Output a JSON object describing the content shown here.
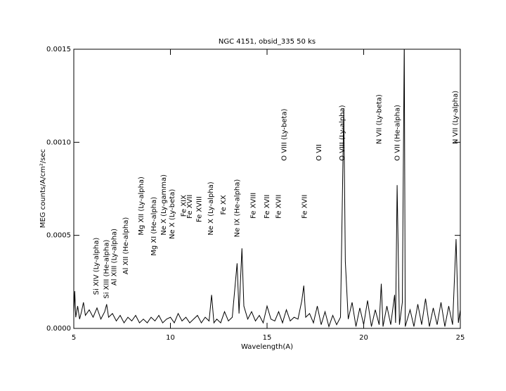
{
  "chart_data": {
    "type": "line",
    "title": "NGC 4151, obsid_335 50 ks",
    "x_label": "Wavelength(A)",
    "y_label": "MEG counts/A/cm²/sec",
    "color": "#000000",
    "xlim": [
      5,
      25
    ],
    "ylim": [
      0,
      0.0015
    ],
    "xticks": [
      5,
      10,
      15,
      20,
      25
    ],
    "yticks": [
      {
        "value": 0,
        "label": "0.0000"
      },
      {
        "value": 0.0005,
        "label": "0.0005"
      },
      {
        "value": 0.001,
        "label": "0.0010"
      },
      {
        "value": 0.0015,
        "label": "0.0015"
      }
    ],
    "x": [
      5.0,
      5.05,
      5.1,
      5.2,
      5.3,
      5.4,
      5.5,
      5.6,
      5.8,
      6.0,
      6.2,
      6.4,
      6.6,
      6.7,
      6.8,
      7.0,
      7.2,
      7.4,
      7.6,
      7.8,
      8.0,
      8.2,
      8.4,
      8.6,
      8.8,
      9.0,
      9.2,
      9.4,
      9.6,
      9.8,
      10.0,
      10.2,
      10.4,
      10.6,
      10.8,
      11.0,
      11.2,
      11.4,
      11.6,
      11.8,
      12.0,
      12.13,
      12.25,
      12.4,
      12.6,
      12.8,
      13.0,
      13.2,
      13.45,
      13.55,
      13.7,
      13.8,
      14.0,
      14.2,
      14.4,
      14.6,
      14.8,
      15.0,
      15.2,
      15.4,
      15.6,
      15.8,
      16.0,
      16.2,
      16.4,
      16.6,
      16.8,
      16.9,
      17.0,
      17.2,
      17.4,
      17.6,
      17.8,
      18.0,
      18.2,
      18.4,
      18.6,
      18.8,
      18.97,
      19.05,
      19.2,
      19.4,
      19.6,
      19.8,
      20.0,
      20.2,
      20.4,
      20.6,
      20.8,
      20.91,
      21.0,
      21.2,
      21.4,
      21.6,
      21.65,
      21.73,
      21.85,
      22.0,
      22.1,
      22.15,
      22.4,
      22.6,
      22.8,
      23.0,
      23.2,
      23.4,
      23.6,
      23.8,
      24.0,
      24.2,
      24.4,
      24.6,
      24.78,
      24.9,
      25.0
    ],
    "values": [
      8e-05,
      0.0002,
      6e-05,
      0.00012,
      5e-05,
      9e-05,
      0.00014,
      7e-05,
      0.0001,
      6e-05,
      0.00011,
      5e-05,
      9e-05,
      0.00013,
      6e-05,
      8e-05,
      4e-05,
      7e-05,
      3e-05,
      6e-05,
      4e-05,
      7e-05,
      3e-05,
      5e-05,
      3e-05,
      6e-05,
      4e-05,
      7e-05,
      3e-05,
      5e-05,
      6e-05,
      3e-05,
      8e-05,
      4e-05,
      6e-05,
      3e-05,
      5e-05,
      7e-05,
      3e-05,
      6e-05,
      4e-05,
      0.00018,
      3e-05,
      5e-05,
      3e-05,
      9e-05,
      4e-05,
      6e-05,
      0.00035,
      8e-05,
      0.00043,
      0.00012,
      5e-05,
      9e-05,
      4e-05,
      7e-05,
      3e-05,
      0.00012,
      5e-05,
      4e-05,
      9e-05,
      3e-05,
      0.0001,
      4e-05,
      6e-05,
      5e-05,
      0.00015,
      0.00023,
      6e-05,
      8e-05,
      3e-05,
      0.00012,
      2e-05,
      9e-05,
      1e-05,
      7e-05,
      2e-05,
      6e-05,
      0.00118,
      0.00036,
      5e-05,
      0.00014,
      1e-05,
      0.00011,
      2e-05,
      0.00015,
      1e-05,
      0.0001,
      2e-05,
      0.00024,
      1e-05,
      0.00012,
      2e-05,
      0.00018,
      3e-05,
      0.00077,
      2e-05,
      0.00014,
      0.00155,
      1e-05,
      0.0001,
      1e-05,
      0.00013,
      2e-05,
      0.00016,
      1e-05,
      0.00011,
      2e-05,
      0.00014,
      1e-05,
      0.00012,
      2e-05,
      0.00048,
      3e-05,
      0.0001
    ],
    "annotations": [
      {
        "text": "Si XIV (Ly-alpha)",
        "x": 6.16,
        "y": 0.00018
      },
      {
        "text": "Si XIII (He-alpha)",
        "x": 6.7,
        "y": 0.00016
      },
      {
        "text": "Al XIII (Ly-alpha)",
        "x": 7.1,
        "y": 0.00023
      },
      {
        "text": "Al XII (He-alpha)",
        "x": 7.7,
        "y": 0.00029
      },
      {
        "text": "Mg XII (Ly-alpha)",
        "x": 8.5,
        "y": 0.0005
      },
      {
        "text": "Mg XI (He-alpha)",
        "x": 9.15,
        "y": 0.00039
      },
      {
        "text": "Ne X (Ly-gamma)",
        "x": 9.65,
        "y": 0.0005
      },
      {
        "text": "Ne X (Ly-beta)",
        "x": 10.1,
        "y": 0.00048
      },
      {
        "text": "Fe XIX",
        "x": 10.7,
        "y": 0.0006
      },
      {
        "text": "Fe XVII",
        "x": 11.0,
        "y": 0.00059
      },
      {
        "text": "Fe XVIII",
        "x": 11.5,
        "y": 0.00057
      },
      {
        "text": "Ne X (Ly-alpha)",
        "x": 12.1,
        "y": 0.0005
      },
      {
        "text": "Fe XX",
        "x": 12.75,
        "y": 0.00061
      },
      {
        "text": "Ne IX (He-alpha)",
        "x": 13.45,
        "y": 0.00049
      },
      {
        "text": "Fe XVIII",
        "x": 14.3,
        "y": 0.00059
      },
      {
        "text": "Fe XVII",
        "x": 15.0,
        "y": 0.00059
      },
      {
        "text": "Fe XVII",
        "x": 15.6,
        "y": 0.00059
      },
      {
        "text": "O VIII (Ly-beta)",
        "x": 15.9,
        "y": 0.0009
      },
      {
        "text": "Fe XVII",
        "x": 16.95,
        "y": 0.00059
      },
      {
        "text": "O VII",
        "x": 17.7,
        "y": 0.0009
      },
      {
        "text": "O VIII (Ly-alpha)",
        "x": 18.9,
        "y": 0.0009
      },
      {
        "text": "N VII (Ly-beta)",
        "x": 20.8,
        "y": 0.00099
      },
      {
        "text": "O VII (He-alpha)",
        "x": 21.75,
        "y": 0.0009
      },
      {
        "text": "N VII (Ly-alpha)",
        "x": 24.75,
        "y": 0.00099
      }
    ]
  }
}
